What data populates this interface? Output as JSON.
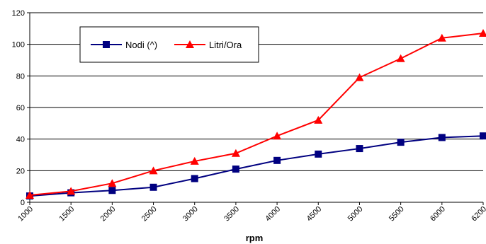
{
  "chart_data": {
    "type": "line",
    "title": "",
    "xlabel": "rpm",
    "ylabel": "",
    "categories": [
      "1000",
      "1500",
      "2000",
      "2500",
      "3000",
      "3500",
      "4000",
      "4500",
      "5000",
      "5500",
      "6000",
      "6200"
    ],
    "ylim": [
      0,
      120
    ],
    "yticks": [
      0,
      20,
      40,
      60,
      80,
      100,
      120
    ],
    "grid": "horizontal",
    "legend_position": "top-left inside",
    "series": [
      {
        "name": "Nodi (^)",
        "color": "#000080",
        "marker": "square",
        "values": [
          4,
          6,
          7.5,
          9.5,
          15,
          21,
          26.5,
          30.5,
          34,
          38,
          41,
          42
        ]
      },
      {
        "name": "Litri/Ora",
        "color": "#ff0000",
        "marker": "triangle",
        "values": [
          4.5,
          7,
          12,
          20,
          26,
          31,
          42,
          52,
          79,
          91,
          104,
          107
        ]
      }
    ]
  }
}
